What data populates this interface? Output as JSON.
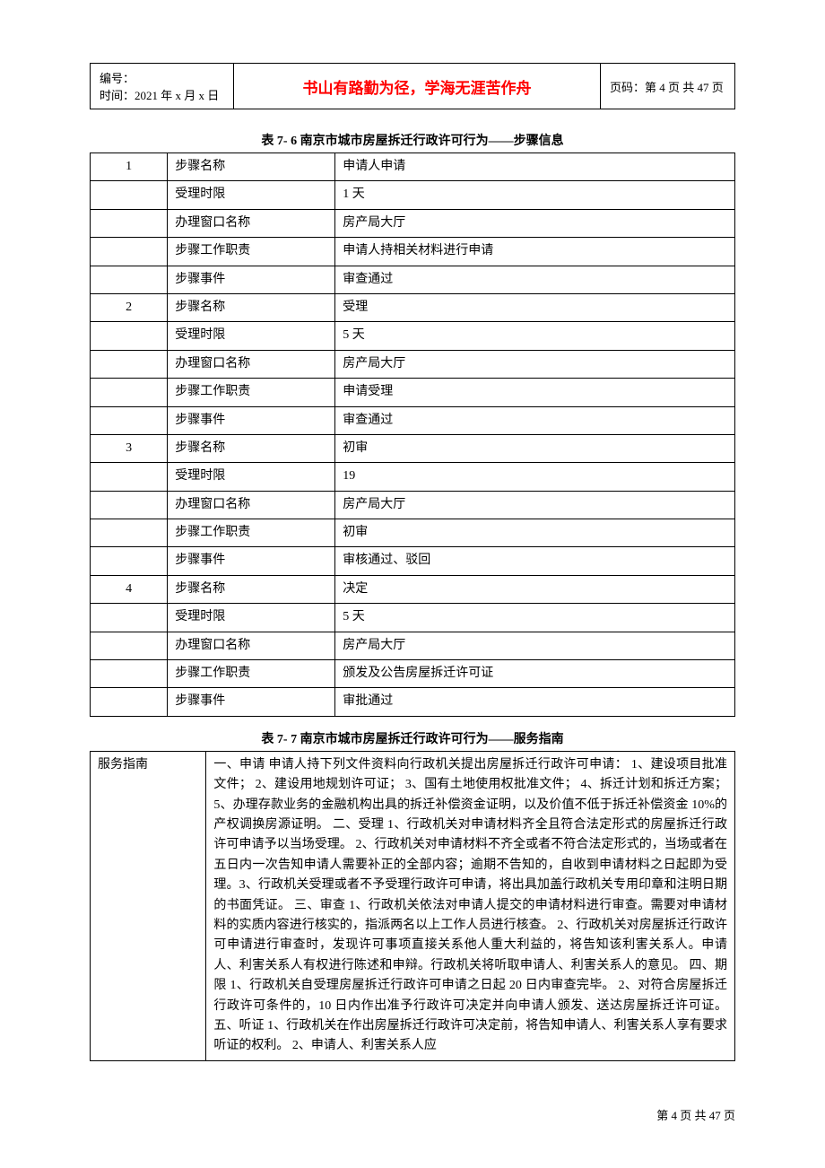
{
  "header": {
    "id_label": "编号：",
    "date_label": "时间：2021 年 x 月 x 日",
    "motto": "书山有路勤为径，学海无涯苦作舟",
    "page_label": "页码：第 4 页  共 47 页"
  },
  "table1": {
    "caption": "表 7- 6  南京市城市房屋拆迁行政许可行为——步骤信息",
    "steps": [
      {
        "num": "1",
        "rows": [
          {
            "label": "步骤名称",
            "value": "申请人申请"
          },
          {
            "label": "受理时限",
            "value": "1 天"
          },
          {
            "label": "办理窗口名称",
            "value": "房产局大厅"
          },
          {
            "label": "步骤工作职责",
            "value": "申请人持相关材料进行申请"
          },
          {
            "label": "步骤事件",
            "value": "审查通过"
          }
        ]
      },
      {
        "num": "2",
        "rows": [
          {
            "label": "步骤名称",
            "value": "受理"
          },
          {
            "label": "受理时限",
            "value": "5 天"
          },
          {
            "label": "办理窗口名称",
            "value": "房产局大厅"
          },
          {
            "label": "步骤工作职责",
            "value": "申请受理"
          },
          {
            "label": "步骤事件",
            "value": "审查通过"
          }
        ]
      },
      {
        "num": "3",
        "rows": [
          {
            "label": "步骤名称",
            "value": "初审"
          },
          {
            "label": "受理时限",
            "value": "19"
          },
          {
            "label": "办理窗口名称",
            "value": "房产局大厅"
          },
          {
            "label": "步骤工作职责",
            "value": "初审"
          },
          {
            "label": "步骤事件",
            "value": "审核通过、驳回"
          }
        ]
      },
      {
        "num": "4",
        "rows": [
          {
            "label": "步骤名称",
            "value": "决定"
          },
          {
            "label": "受理时限",
            "value": "5 天"
          },
          {
            "label": "办理窗口名称",
            "value": "房产局大厅"
          },
          {
            "label": "步骤工作职责",
            "value": "颁发及公告房屋拆迁许可证"
          },
          {
            "label": "步骤事件",
            "value": "审批通过"
          }
        ]
      }
    ]
  },
  "table2": {
    "caption": "表 7- 7  南京市城市房屋拆迁行政许可行为——服务指南",
    "label": "服务指南",
    "content": "一、申请  申请人持下列文件资料向行政机关提出房屋拆迁行政许可申请：  1、建设项目批准文件；  2、建设用地规划许可证；  3、国有土地使用权批准文件；  4、拆迁计划和拆迁方案；  5、办理存款业务的金融机构出具的拆迁补偿资金证明，以及价值不低于拆迁补偿资金 10%的产权调换房源证明。  二、受理  1、行政机关对申请材料齐全且符合法定形式的房屋拆迁行政许可申请予以当场受理。  2、行政机关对申请材料不齐全或者不符合法定形式的，当场或者在五日内一次告知申请人需要补正的全部内容；逾期不告知的，自收到申请材料之日起即为受理。3、行政机关受理或者不予受理行政许可申请，将出具加盖行政机关专用印章和注明日期的书面凭证。  三、审查  1、行政机关依法对申请人提交的申请材料进行审查。需要对申请材料的实质内容进行核实的，指派两名以上工作人员进行核查。  2、行政机关对房屋拆迁行政许可申请进行审查时，发现许可事项直接关系他人重大利益的，将告知该利害关系人。申请人、利害关系人有权进行陈述和申辩。行政机关将听取申请人、利害关系人的意见。  四、期限  1、行政机关自受理房屋拆迁行政许可申请之日起 20 日内审查完毕。  2、对符合房屋拆迁行政许可条件的，10 日内作出准予行政许可决定并向申请人颁发、送达房屋拆迁许可证。  五、听证  1、行政机关在作出房屋拆迁行政许可决定前，将告知申请人、利害关系人享有要求听证的权利。  2、申请人、利害关系人应"
  },
  "footer": {
    "text": "第  4  页  共  47  页"
  }
}
